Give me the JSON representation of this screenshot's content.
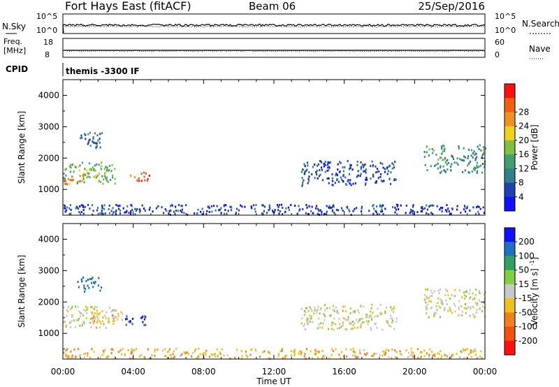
{
  "header": {
    "title": "Fort Hays East (fitACF)",
    "beam": "Beam 06",
    "date": "25/Sep/2016"
  },
  "noise_panel": {
    "left_label": "N.Sky",
    "right_label": "N.Search",
    "tick_top": "10^5",
    "tick_bottom": "10^0"
  },
  "freq_panel": {
    "left_label_line1": "Freq.",
    "left_label_line2": "[MHz]",
    "left_tick_top": "18",
    "left_tick_bottom": "8",
    "right_label": "Nave",
    "right_tick_top": "60",
    "right_tick_bottom": "0"
  },
  "cpid_panel": {
    "left_label": "CPID",
    "program": "themis -3300 IF"
  },
  "x_axis": {
    "label": "Time UT",
    "ticks": [
      "00:00",
      "04:00",
      "08:00",
      "12:00",
      "16:00",
      "20:00",
      "00:00"
    ]
  },
  "y_axis": {
    "label": "Slant Range [km]",
    "ticks": [
      "1000",
      "2000",
      "3000",
      "4000"
    ]
  },
  "power_scale": {
    "label": "Power [dB]",
    "ticks": [
      "4",
      "8",
      "12",
      "16",
      "20",
      "24",
      "28"
    ],
    "colors": [
      "#1010ff",
      "#2040b0",
      "#30808c",
      "#40a070",
      "#80c040",
      "#f0d020",
      "#f09020",
      "#f06010",
      "#ff1010"
    ]
  },
  "velocity_scale": {
    "label": "Velocity [m s^-1]",
    "ticks": [
      "200",
      "100",
      "50",
      "15",
      "-15",
      "-50",
      "-100",
      "-200"
    ],
    "colors": [
      "#1010ff",
      "#1e70c0",
      "#30a060",
      "#80d040",
      "#c8c8c8",
      "#f0c020",
      "#f08020",
      "#f05010",
      "#ff1010"
    ]
  },
  "chart_data": [
    {
      "type": "heatmap",
      "title": "Power [dB]",
      "xlabel": "Time UT",
      "ylabel": "Slant Range [km]",
      "xlim": [
        0,
        24
      ],
      "ylim": [
        180,
        4500
      ],
      "clim": [
        0,
        32
      ],
      "regions": [
        {
          "t0": 0.0,
          "t1": 3.0,
          "r0": 1150,
          "r1": 1850,
          "level": 15
        },
        {
          "t0": 0.0,
          "t1": 1.2,
          "r0": 1150,
          "r1": 1450,
          "level": 24
        },
        {
          "t0": 3.8,
          "t1": 4.9,
          "r0": 1250,
          "r1": 1550,
          "level": 26
        },
        {
          "t0": 0.8,
          "t1": 2.2,
          "r0": 2300,
          "r1": 2800,
          "level": 8
        },
        {
          "t0": 13.5,
          "t1": 19.0,
          "r0": 1100,
          "r1": 1900,
          "level": 6
        },
        {
          "t0": 20.5,
          "t1": 24.0,
          "r0": 1500,
          "r1": 2400,
          "level": 11
        },
        {
          "t0": 0.0,
          "t1": 24.0,
          "r0": 180,
          "r1": 500,
          "level": 5
        }
      ]
    },
    {
      "type": "heatmap",
      "title": "Velocity [m s^-1]",
      "xlabel": "Time UT",
      "ylabel": "Slant Range [km]",
      "xlim": [
        0,
        24
      ],
      "ylim": [
        180,
        4500
      ],
      "clim": [
        -250,
        250
      ],
      "regions": [
        {
          "t0": 0.0,
          "t1": 3.0,
          "r0": 1150,
          "r1": 1850,
          "value": 0
        },
        {
          "t0": 1.5,
          "t1": 3.5,
          "r0": 1300,
          "r1": 1700,
          "value": -30
        },
        {
          "t0": 3.5,
          "t1": 4.9,
          "r0": 1250,
          "r1": 1550,
          "value": 200
        },
        {
          "t0": 0.8,
          "t1": 2.2,
          "r0": 2300,
          "r1": 2800,
          "value": 150
        },
        {
          "t0": 13.5,
          "t1": 19.0,
          "r0": 1100,
          "r1": 1900,
          "value": 0
        },
        {
          "t0": 20.5,
          "t1": 24.0,
          "r0": 1500,
          "r1": 2400,
          "value": 0
        },
        {
          "t0": 0.0,
          "t1": 24.0,
          "r0": 180,
          "r1": 500,
          "value": -40
        }
      ]
    }
  ]
}
